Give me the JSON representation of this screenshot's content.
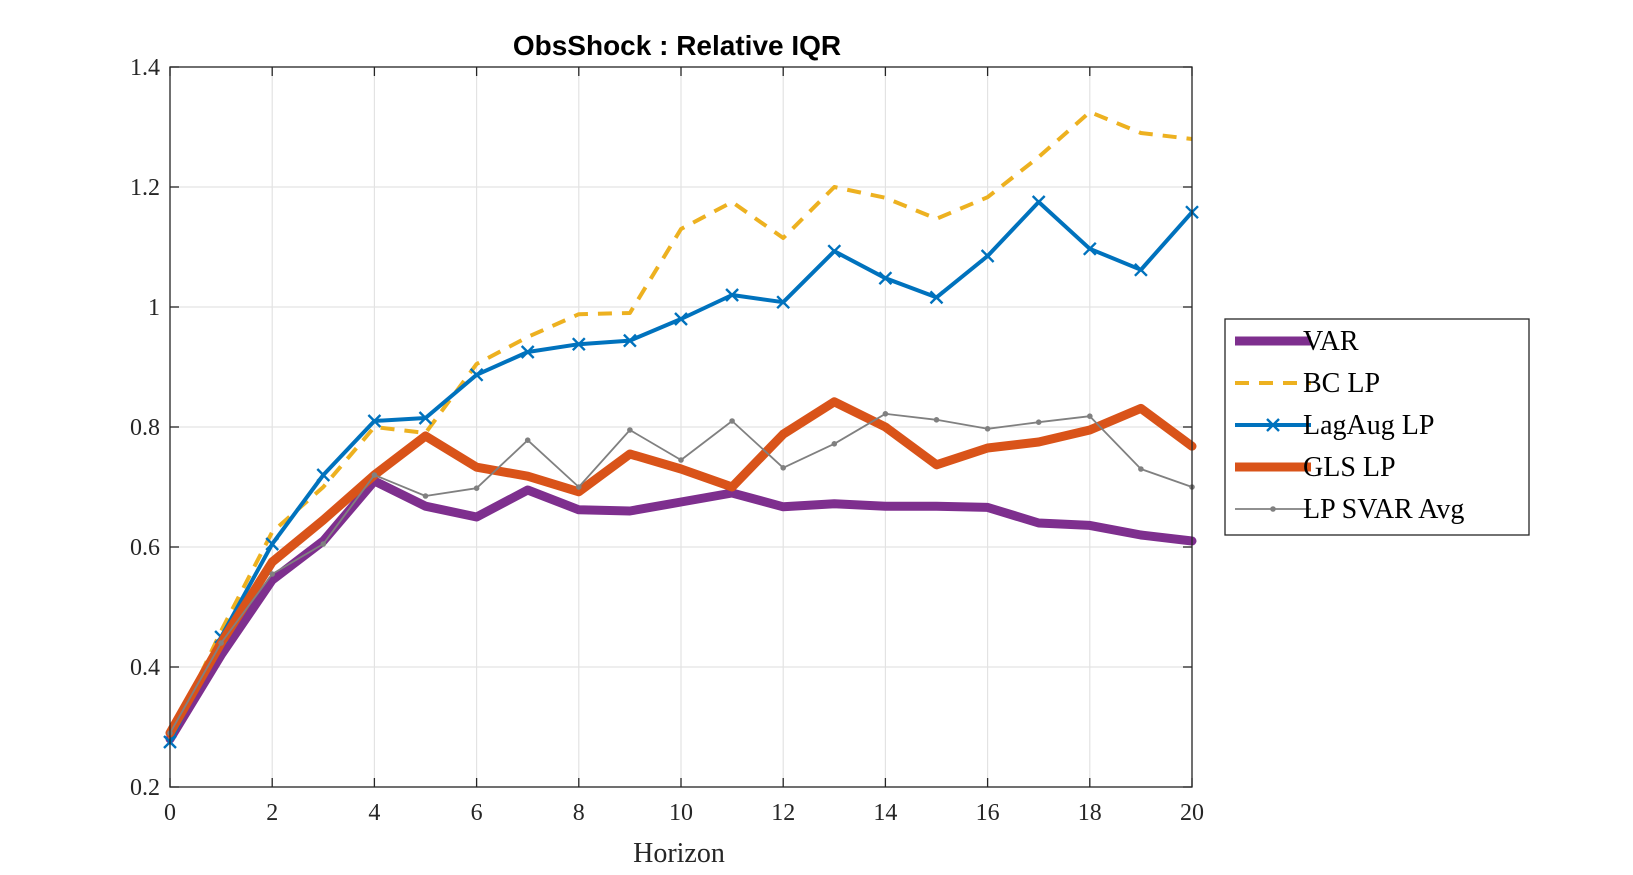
{
  "chart_data": {
    "type": "line",
    "title": "ObsShock : Relative IQR",
    "xlabel": "Horizon",
    "ylabel": "",
    "xlim": [
      0,
      20
    ],
    "ylim": [
      0.2,
      1.4
    ],
    "xticks": [
      0,
      2,
      4,
      6,
      8,
      10,
      12,
      14,
      16,
      18,
      20
    ],
    "yticks": [
      0.2,
      0.4,
      0.6,
      0.8,
      1.0,
      1.2,
      1.4
    ],
    "ytick_labels": [
      "0.2",
      "0.4",
      "0.6",
      "0.8",
      "1",
      "1.2",
      "1.4"
    ],
    "grid": true,
    "legend_position": "outside-right",
    "x": [
      0,
      1,
      2,
      3,
      4,
      5,
      6,
      7,
      8,
      9,
      10,
      11,
      12,
      13,
      14,
      15,
      16,
      17,
      18,
      19,
      20
    ],
    "series": [
      {
        "name": "VAR",
        "color": "#7E2F8E",
        "style": "solid-thick",
        "values": [
          0.28,
          0.42,
          0.545,
          0.61,
          0.71,
          0.668,
          0.65,
          0.695,
          0.662,
          0.66,
          0.675,
          0.69,
          0.667,
          0.672,
          0.668,
          0.668,
          0.666,
          0.64,
          0.636,
          0.62,
          0.61
        ]
      },
      {
        "name": "BC LP",
        "color": "#EDB120",
        "style": "dashed",
        "values": [
          0.28,
          0.46,
          0.625,
          0.7,
          0.8,
          0.79,
          0.905,
          0.95,
          0.988,
          0.99,
          1.13,
          1.175,
          1.115,
          1.2,
          1.182,
          1.147,
          1.183,
          1.25,
          1.325,
          1.29,
          1.28
        ]
      },
      {
        "name": "LagAug LP",
        "color": "#0072BD",
        "style": "solid-x",
        "values": [
          0.275,
          0.45,
          0.605,
          0.72,
          0.81,
          0.815,
          0.887,
          0.925,
          0.938,
          0.944,
          0.98,
          1.02,
          1.008,
          1.093,
          1.048,
          1.016,
          1.085,
          1.175,
          1.097,
          1.062,
          1.158
        ]
      },
      {
        "name": "GLS LP",
        "color": "#D95319",
        "style": "solid-thick",
        "values": [
          0.29,
          0.44,
          0.575,
          0.645,
          0.72,
          0.785,
          0.733,
          0.718,
          0.692,
          0.755,
          0.73,
          0.7,
          0.788,
          0.842,
          0.8,
          0.737,
          0.765,
          0.775,
          0.795,
          0.831,
          0.768
        ]
      },
      {
        "name": "LP SVAR Avg",
        "color": "#808080",
        "style": "thin-dot",
        "values": [
          0.29,
          0.44,
          0.555,
          0.605,
          0.72,
          0.685,
          0.698,
          0.778,
          0.7,
          0.795,
          0.745,
          0.81,
          0.732,
          0.772,
          0.822,
          0.812,
          0.797,
          0.808,
          0.818,
          0.73,
          0.7
        ]
      }
    ]
  }
}
